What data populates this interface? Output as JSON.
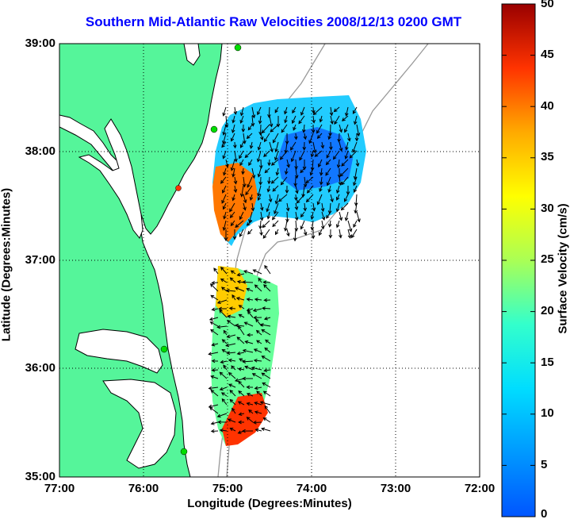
{
  "title": "Southern Mid-Atlantic Raw Velocities 2008/12/13 0200 GMT",
  "xlabel": "Longitude (Degrees:Minutes)",
  "ylabel": "Latitude (Degrees:Minutes)",
  "colorbar_label": "Surface Velocity (cm/s)",
  "x_ticks": [
    "77:00",
    "76:00",
    "75:00",
    "74:00",
    "73:00",
    "72:00"
  ],
  "y_ticks": [
    "39:00",
    "38:00",
    "37:00",
    "36:00",
    "35:00"
  ],
  "colorbar_ticks": [
    "50",
    "45",
    "40",
    "35",
    "30",
    "25",
    "20",
    "15",
    "10",
    "5",
    "0"
  ],
  "colors": {
    "land": "#55f59a",
    "title": "#0000ff",
    "coast": "#000000",
    "isobath": "#999999"
  },
  "chart_data": {
    "type": "heatmap",
    "x_range": [
      -77,
      -72
    ],
    "y_range": [
      35,
      39
    ],
    "value_range": [
      0,
      50
    ],
    "grid": true,
    "colormap": "jet",
    "regions": [
      {
        "name": "",
        "approx_speed_cm_s": [
          5,
          35
        ]
      },
      {
        "name": "",
        "approx_speed_cm_s": [
          15,
          45
        ]
      }
    ]
  }
}
